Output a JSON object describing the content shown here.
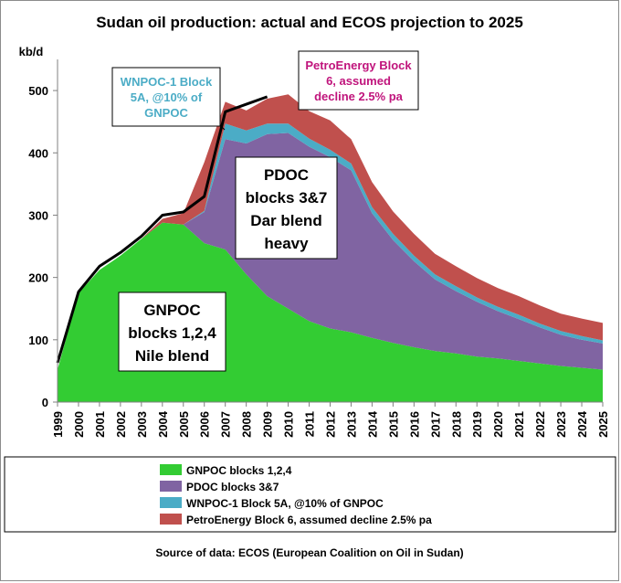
{
  "chart_data": {
    "type": "area",
    "stacked": true,
    "title": "Sudan oil production: actual and ECOS projection to 2025",
    "ylabel": "kb/d",
    "xlabel": "",
    "ylim": [
      0,
      550
    ],
    "yticks": [
      0,
      100,
      200,
      300,
      400,
      500
    ],
    "x": [
      "1999",
      "2000",
      "2001",
      "2002",
      "2003",
      "2004",
      "2005",
      "2006",
      "2007",
      "2008",
      "2009",
      "2010",
      "2011",
      "2012",
      "2013",
      "2014",
      "2015",
      "2016",
      "2017",
      "2018",
      "2019",
      "2020",
      "2021",
      "2022",
      "2023",
      "2024",
      "2025"
    ],
    "series": [
      {
        "name": "GNPOC blocks 1,2,4",
        "color": "#33cc33",
        "values": [
          52,
          175,
          212,
          235,
          262,
          288,
          285,
          255,
          245,
          205,
          170,
          150,
          130,
          118,
          112,
          103,
          95,
          88,
          82,
          78,
          73,
          70,
          66,
          62,
          58,
          55,
          52
        ]
      },
      {
        "name": "PDOC blocks 3&7",
        "color": "#8064a2",
        "values": [
          0,
          0,
          0,
          0,
          0,
          0,
          0,
          50,
          177,
          210,
          260,
          282,
          280,
          275,
          260,
          200,
          165,
          138,
          115,
          100,
          88,
          76,
          67,
          58,
          50,
          45,
          42
        ]
      },
      {
        "name": "WNPOC-1 Block 5A, @10% of GNPOC",
        "color": "#4bacc6",
        "values": [
          0,
          0,
          0,
          0,
          0,
          0,
          0,
          2,
          25,
          21,
          17,
          15,
          13,
          12,
          11,
          10,
          10,
          9,
          8,
          8,
          7,
          7,
          7,
          6,
          6,
          6,
          5
        ]
      },
      {
        "name": "PetroEnergy Block 6, assumed decline 2.5% pa",
        "color": "#c0504d",
        "values": [
          0,
          0,
          0,
          0,
          0,
          6,
          18,
          78,
          35,
          32,
          40,
          47,
          44,
          47,
          39,
          40,
          36,
          35,
          33,
          32,
          31,
          30,
          30,
          29,
          28,
          28,
          28
        ]
      }
    ],
    "actual": {
      "x": [
        "1999",
        "2000",
        "2001",
        "2002",
        "2003",
        "2004",
        "2005",
        "2006",
        "2007",
        "2008",
        "2009"
      ],
      "values": [
        63,
        177,
        218,
        240,
        266,
        300,
        305,
        330,
        466,
        478,
        490
      ]
    },
    "annotations": [
      {
        "label": "GNPOC blocks 1,2,4 Nile blend",
        "lines": [
          "GNPOC",
          "blocks 1,2,4",
          "Nile blend"
        ],
        "color": "#000000"
      },
      {
        "label": "PDOC blocks 3&7 Dar blend heavy",
        "lines": [
          "PDOC",
          "blocks 3&7",
          "Dar blend",
          "heavy"
        ],
        "color": "#000000"
      },
      {
        "label": "WNPOC-1 Block 5A, @10% of GNPOC",
        "lines": [
          "WNPOC-1 Block",
          "5A, @10% of",
          "GNPOC"
        ],
        "color": "#4bacc6"
      },
      {
        "label": "PetroEnergy Block 6, assumed decline 2.5% pa",
        "lines": [
          "PetroEnergy Block",
          "6, assumed",
          "decline 2.5% pa"
        ],
        "color": "#c0147c"
      }
    ],
    "legend_position": "bottom",
    "grid": false
  },
  "source": "Source of data: ECOS (European Coalition on Oil in Sudan)"
}
